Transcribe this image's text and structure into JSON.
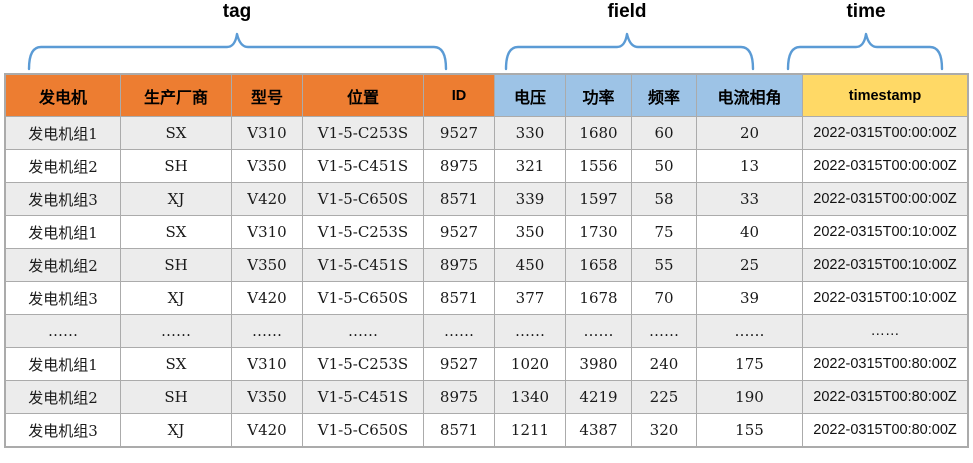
{
  "annotations": {
    "tag_label": "tag",
    "field_label": "field",
    "time_label": "time"
  },
  "colors": {
    "tag_header_bg": "#ED7D31",
    "field_header_bg": "#9DC3E6",
    "time_header_bg": "#FFD966",
    "row_stripe_bg": "#ECECEC",
    "border": "#ABABAB",
    "brace": "#5B9BD5"
  },
  "table": {
    "headers": [
      {
        "label": "发电机",
        "group": "tag"
      },
      {
        "label": "生产厂商",
        "group": "tag"
      },
      {
        "label": "型号",
        "group": "tag"
      },
      {
        "label": "位置",
        "group": "tag"
      },
      {
        "label": "ID",
        "group": "tag"
      },
      {
        "label": "电压",
        "group": "field"
      },
      {
        "label": "功率",
        "group": "field"
      },
      {
        "label": "频率",
        "group": "field"
      },
      {
        "label": "电流相角",
        "group": "field"
      },
      {
        "label": "timestamp",
        "group": "time"
      }
    ],
    "rows": [
      [
        "发电机组1",
        "SX",
        "V310",
        "V1-5-C253S",
        "9527",
        "330",
        "1680",
        "60",
        "20",
        "2022-0315T00:00:00Z"
      ],
      [
        "发电机组2",
        "SH",
        "V350",
        "V1-5-C451S",
        "8975",
        "321",
        "1556",
        "50",
        "13",
        "2022-0315T00:00:00Z"
      ],
      [
        "发电机组3",
        "XJ",
        "V420",
        "V1-5-C650S",
        "8571",
        "339",
        "1597",
        "58",
        "33",
        "2022-0315T00:00:00Z"
      ],
      [
        "发电机组1",
        "SX",
        "V310",
        "V1-5-C253S",
        "9527",
        "350",
        "1730",
        "75",
        "40",
        "2022-0315T00:10:00Z"
      ],
      [
        "发电机组2",
        "SH",
        "V350",
        "V1-5-C451S",
        "8975",
        "450",
        "1658",
        "55",
        "25",
        "2022-0315T00:10:00Z"
      ],
      [
        "发电机组3",
        "XJ",
        "V420",
        "V1-5-C650S",
        "8571",
        "377",
        "1678",
        "70",
        "39",
        "2022-0315T00:10:00Z"
      ],
      [
        "……",
        "……",
        "……",
        "……",
        "……",
        "……",
        "……",
        "……",
        "……",
        "……"
      ],
      [
        "发电机组1",
        "SX",
        "V310",
        "V1-5-C253S",
        "9527",
        "1020",
        "3980",
        "240",
        "175",
        "2022-0315T00:80:00Z"
      ],
      [
        "发电机组2",
        "SH",
        "V350",
        "V1-5-C451S",
        "8975",
        "1340",
        "4219",
        "225",
        "190",
        "2022-0315T00:80:00Z"
      ],
      [
        "发电机组3",
        "XJ",
        "V420",
        "V1-5-C650S",
        "8571",
        "1211",
        "4387",
        "320",
        "155",
        "2022-0315T00:80:00Z"
      ]
    ]
  }
}
